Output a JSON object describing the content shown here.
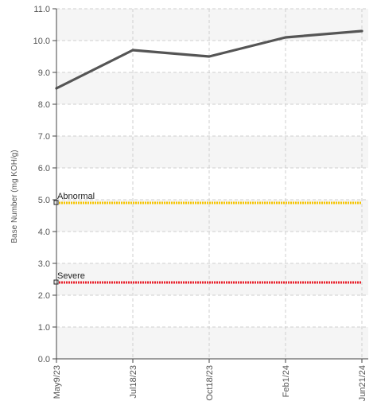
{
  "chart_data": {
    "type": "line",
    "ylabel": "Base Number (mg KOH/g)",
    "ylim": [
      0,
      11
    ],
    "ytick_step": 1,
    "ytick_labels": [
      "0.0",
      "1.0",
      "2.0",
      "3.0",
      "4.0",
      "5.0",
      "6.0",
      "7.0",
      "8.0",
      "9.0",
      "10.0",
      "11.0"
    ],
    "categories": [
      "May9/23",
      "Jul18/23",
      "Oct18/23",
      "Feb1/24",
      "Jun21/24"
    ],
    "values": [
      8.5,
      9.7,
      9.5,
      10.1,
      10.3
    ],
    "line_color": "#555555",
    "grid": true,
    "band_colors": [
      "#f5f5f5",
      "#ffffff"
    ],
    "thresholds": [
      {
        "label": "Abnormal",
        "value": 4.9,
        "color": "#f5c400"
      },
      {
        "label": "Severe",
        "value": 2.4,
        "color": "#e8202a"
      }
    ]
  }
}
